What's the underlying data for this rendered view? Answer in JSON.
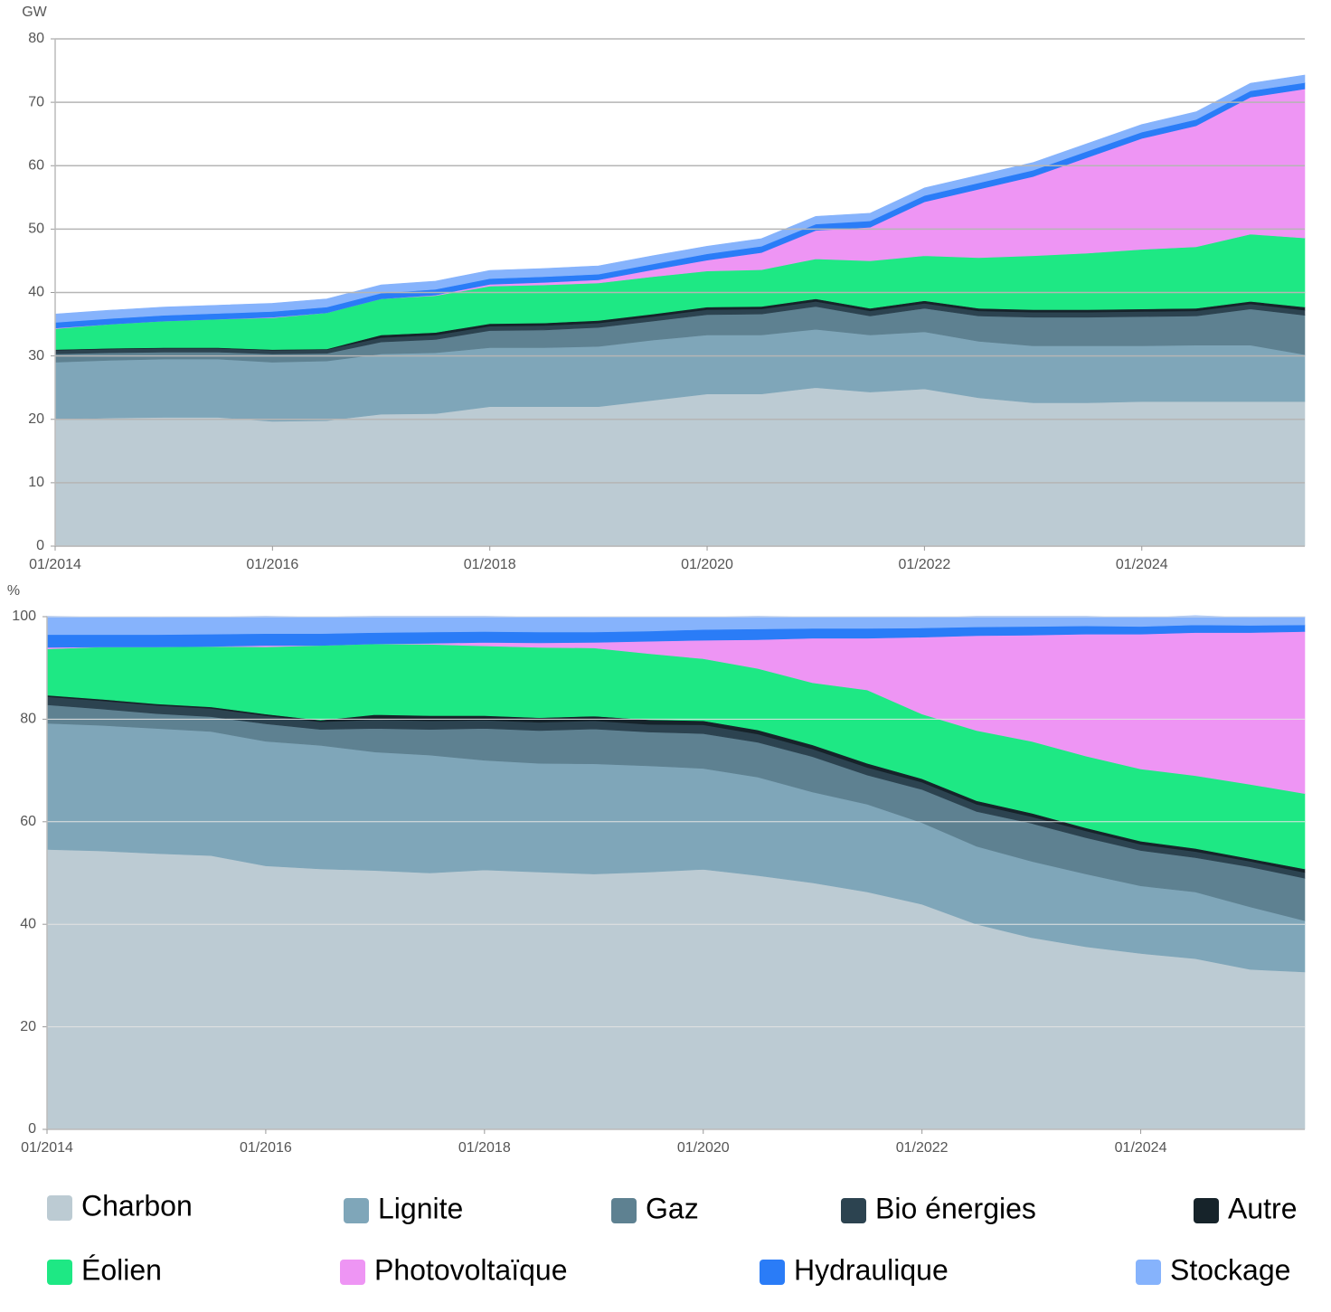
{
  "chart_data": [
    {
      "type": "area",
      "stacked": true,
      "y_label": "GW",
      "grid": true,
      "x": [
        "01/2014",
        "07/2014",
        "01/2015",
        "07/2015",
        "01/2016",
        "07/2016",
        "01/2017",
        "07/2017",
        "01/2018",
        "07/2018",
        "01/2019",
        "07/2019",
        "01/2020",
        "07/2020",
        "01/2021",
        "07/2021",
        "01/2022",
        "07/2022",
        "01/2023",
        "07/2023",
        "01/2024",
        "07/2024",
        "01/2025",
        "07/2025"
      ],
      "xticks": [
        "01/2014",
        "01/2016",
        "01/2018",
        "01/2020",
        "01/2022",
        "01/2024"
      ],
      "ylim": [
        0,
        80
      ],
      "yticks": [
        0,
        10,
        20,
        30,
        40,
        50,
        60,
        70,
        80
      ],
      "series": [
        {
          "name": "Charbon",
          "color": "#bccbd3",
          "values": [
            20,
            20.2,
            20.3,
            20.3,
            19.7,
            19.8,
            20.8,
            20.9,
            22,
            22,
            22,
            23,
            24,
            24,
            25,
            24.3,
            24.8,
            23.4,
            22.6,
            22.6,
            22.8,
            22.8,
            22.8,
            22.8
          ]
        },
        {
          "name": "Lignite",
          "color": "#7fa6b9",
          "values": [
            9,
            9.1,
            9.2,
            9.2,
            9.3,
            9.4,
            9.5,
            9.6,
            9.3,
            9.3,
            9.5,
            9.5,
            9.3,
            9.3,
            9.2,
            9,
            9,
            8.9,
            9,
            9,
            8.8,
            8.9,
            8.9,
            7.4
          ]
        },
        {
          "name": "Gaz",
          "color": "#5e8191",
          "values": [
            1.3,
            1.2,
            1.1,
            1.1,
            1.3,
            1.2,
            1.9,
            2.1,
            2.7,
            2.8,
            3,
            3,
            3.2,
            3.3,
            3.6,
            3,
            3.7,
            4,
            4.5,
            4.5,
            4.6,
            4.6,
            5.7,
            6.2
          ]
        },
        {
          "name": "Bio énergies",
          "color": "#2c4350",
          "values": [
            0.6,
            0.6,
            0.6,
            0.6,
            0.6,
            0.6,
            0.7,
            0.7,
            0.7,
            0.7,
            0.7,
            0.7,
            0.8,
            0.8,
            0.8,
            0.8,
            0.8,
            0.8,
            0.8,
            0.8,
            0.8,
            0.8,
            0.8,
            0.8
          ]
        },
        {
          "name": "Autre",
          "color": "#16232a",
          "values": [
            0.1,
            0.1,
            0.1,
            0.1,
            0.1,
            0.1,
            0.4,
            0.4,
            0.4,
            0.4,
            0.4,
            0.4,
            0.4,
            0.4,
            0.4,
            0.4,
            0.4,
            0.4,
            0.4,
            0.4,
            0.4,
            0.4,
            0.4,
            0.5
          ]
        },
        {
          "name": "Éolien",
          "color": "#1ee884",
          "values": [
            3.3,
            3.8,
            4.2,
            4.5,
            5,
            5.7,
            5.7,
            5.8,
            5.9,
            6,
            5.9,
            5.9,
            5.7,
            5.8,
            6.3,
            7.5,
            7.1,
            8,
            8.5,
            8.9,
            9.4,
            9.7,
            10.6,
            10.9
          ]
        },
        {
          "name": "Photovoltaïque",
          "color": "#ee95f4",
          "values": [
            0.1,
            0,
            0,
            0,
            0.1,
            0,
            0,
            0.1,
            0.3,
            0.4,
            0.5,
            1.1,
            1.7,
            2.7,
            4.5,
            5.3,
            8.5,
            10.8,
            12.5,
            15.1,
            17.5,
            19.1,
            21.6,
            23.5
          ]
        },
        {
          "name": "Hydraulique",
          "color": "#2a7cf7",
          "values": [
            0.9,
            0.9,
            0.9,
            0.9,
            0.9,
            0.9,
            0.9,
            0.9,
            0.9,
            0.9,
            0.9,
            0.9,
            1,
            1,
            1,
            1,
            1,
            1,
            1,
            1,
            1,
            1,
            1,
            1
          ]
        },
        {
          "name": "Stockage",
          "color": "#86b3fc",
          "values": [
            1.3,
            1.3,
            1.3,
            1.3,
            1.3,
            1.3,
            1.3,
            1.3,
            1.3,
            1.3,
            1.3,
            1.3,
            1.2,
            1.2,
            1.2,
            1.2,
            1.2,
            1.2,
            1.2,
            1.2,
            1.2,
            1.2,
            1.2,
            1.2
          ]
        }
      ]
    },
    {
      "type": "area",
      "stacked": true,
      "y_label": "%",
      "grid": true,
      "x": [
        "01/2014",
        "07/2014",
        "01/2015",
        "07/2015",
        "01/2016",
        "07/2016",
        "01/2017",
        "07/2017",
        "01/2018",
        "07/2018",
        "01/2019",
        "07/2019",
        "01/2020",
        "07/2020",
        "01/2021",
        "07/2021",
        "01/2022",
        "07/2022",
        "01/2023",
        "07/2023",
        "01/2024",
        "07/2024",
        "01/2025",
        "07/2025"
      ],
      "xticks": [
        "01/2014",
        "01/2016",
        "01/2018",
        "01/2020",
        "01/2022",
        "01/2024"
      ],
      "ylim": [
        0,
        100
      ],
      "yticks": [
        0,
        20,
        40,
        60,
        80,
        100
      ],
      "series": [
        {
          "color": "#bccbd3",
          "values": [
            54.6,
            54.3,
            53.8,
            53.4,
            51.4,
            50.8,
            50.5,
            50,
            50.6,
            50.2,
            49.8,
            50.2,
            50.7,
            49.5,
            48.1,
            46.3,
            43.9,
            40,
            37.4,
            35.6,
            34.3,
            33.3,
            31.2,
            30.7
          ]
        },
        {
          "color": "#7fa6b9",
          "values": [
            24.6,
            24.5,
            24.4,
            24.2,
            24.3,
            24.1,
            23.1,
            23,
            21.4,
            21.2,
            21.5,
            20.7,
            19.7,
            19.2,
            17.7,
            17.1,
            15.9,
            15.2,
            14.9,
            14.2,
            13.2,
            13,
            12.2,
            10
          ]
        },
        {
          "color": "#5e8191",
          "values": [
            3.6,
            3.2,
            2.9,
            2.9,
            3.4,
            3.1,
            4.6,
            5,
            6.2,
            6.4,
            6.8,
            6.6,
            6.8,
            6.8,
            6.9,
            5.7,
            6.5,
            6.8,
            7.4,
            7.1,
            6.9,
            6.7,
            7.8,
            8.3
          ]
        },
        {
          "color": "#2c4350",
          "values": [
            1.6,
            1.6,
            1.6,
            1.6,
            1.6,
            1.5,
            1.7,
            1.7,
            1.6,
            1.6,
            1.6,
            1.5,
            1.7,
            1.6,
            1.5,
            1.5,
            1.4,
            1.4,
            1.3,
            1.3,
            1.2,
            1.2,
            1.1,
            1.1
          ]
        },
        {
          "color": "#16232a",
          "values": [
            0.3,
            0.3,
            0.3,
            0.3,
            0.3,
            0.3,
            1,
            1,
            0.9,
            0.9,
            0.9,
            0.9,
            0.8,
            0.8,
            0.8,
            0.8,
            0.7,
            0.7,
            0.7,
            0.6,
            0.6,
            0.6,
            0.5,
            0.7
          ]
        },
        {
          "color": "#1ee884",
          "values": [
            9,
            10.2,
            11.1,
            11.8,
            13.1,
            14.6,
            13.8,
            13.9,
            13.6,
            13.7,
            13.3,
            12.9,
            12.1,
            12,
            12.1,
            14.3,
            12.6,
            13.7,
            14,
            14,
            14.1,
            14.2,
            14.5,
            14.7
          ]
        },
        {
          "color": "#ee95f4",
          "values": [
            0.3,
            0,
            0,
            0,
            0.3,
            0,
            0,
            0.2,
            0.7,
            0.9,
            1.1,
            2.4,
            3.6,
            5.6,
            8.7,
            10.1,
            15,
            18.5,
            20.7,
            23.8,
            26.3,
            27.9,
            29.6,
            31.6
          ]
        },
        {
          "color": "#2a7cf7",
          "values": [
            2.5,
            2.4,
            2.4,
            2.4,
            2.3,
            2.3,
            2.2,
            2.2,
            2.1,
            2.1,
            2,
            2,
            2.1,
            2.1,
            1.9,
            1.9,
            1.8,
            1.7,
            1.7,
            1.6,
            1.5,
            1.5,
            1.4,
            1.3
          ]
        },
        {
          "color": "#86b3fc",
          "values": [
            3.6,
            3.5,
            3.4,
            3.4,
            3.4,
            3.3,
            3.2,
            3.1,
            3,
            3,
            2.9,
            2.8,
            2.5,
            2.5,
            2.3,
            2.3,
            2.1,
            2.1,
            2,
            1.9,
            1.8,
            1.8,
            1.6,
            1.6
          ]
        }
      ]
    }
  ]
}
